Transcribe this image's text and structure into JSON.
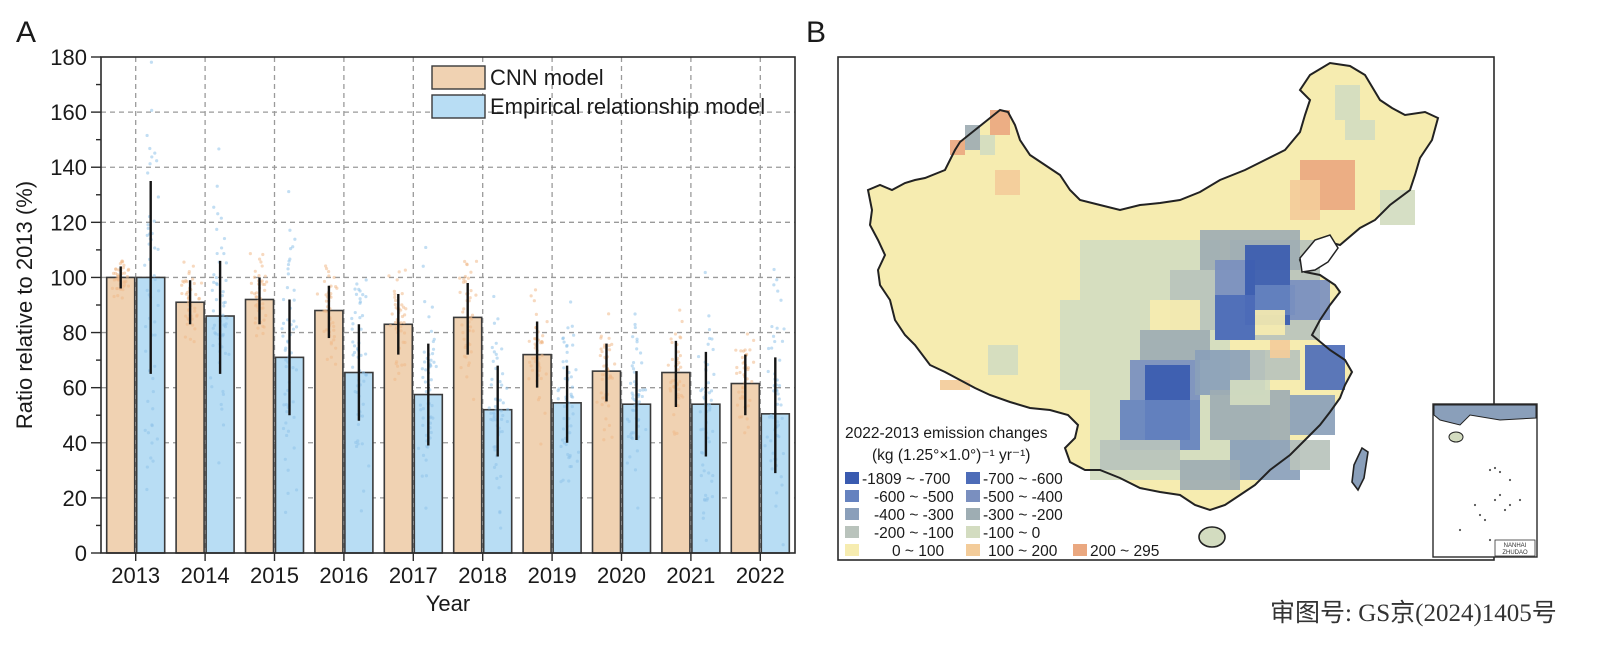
{
  "panels": {
    "a_label": "A",
    "b_label": "B"
  },
  "chart_data": [
    {
      "type": "bar",
      "title": "",
      "xlabel": "Year",
      "ylabel": "Ratio relative to 2013 (%)",
      "ylim": [
        0,
        180
      ],
      "yticks": [
        0,
        20,
        40,
        60,
        80,
        100,
        120,
        140,
        160,
        180
      ],
      "yticks_minor_step": 10,
      "grid": true,
      "legend_position": "top-right",
      "categories": [
        "2013",
        "2014",
        "2015",
        "2016",
        "2017",
        "2018",
        "2019",
        "2020",
        "2021",
        "2022"
      ],
      "series": [
        {
          "name": "CNN model",
          "color": "#f0d2b2",
          "point_color": "#f0b98a",
          "values": [
            100,
            91,
            92,
            88,
            83,
            85.5,
            72,
            66,
            65.5,
            61.5
          ],
          "err_low": [
            96,
            83,
            83,
            78,
            72,
            72,
            60,
            55,
            53,
            50
          ],
          "err_high": [
            104,
            99,
            100,
            97,
            94,
            98,
            84,
            76,
            77,
            72
          ]
        },
        {
          "name": "Empirical relationship model",
          "color": "#b8ddf4",
          "point_color": "#8fc2ea",
          "values": [
            100,
            86,
            71,
            65.5,
            57.5,
            52,
            54.5,
            54,
            54,
            50.5
          ],
          "err_low": [
            65,
            65,
            50,
            48,
            39,
            35,
            40,
            41,
            35,
            29
          ],
          "err_high": [
            135,
            106,
            92,
            83,
            76,
            68,
            68,
            66,
            73,
            71
          ]
        }
      ]
    },
    {
      "type": "heatmap",
      "title": "2022-2013 emission changes",
      "subtitle": "(kg (1.25°×1.0°)⁻¹ yr⁻¹)",
      "legend_position": "bottom-left",
      "legend": [
        {
          "label": "-1809 ~ -700",
          "color": "#3a5bb0"
        },
        {
          "label": "-700 ~ -600",
          "color": "#4d6cb8"
        },
        {
          "label": "-600 ~ -500",
          "color": "#6582bf"
        },
        {
          "label": "-500 ~ -400",
          "color": "#7a8fbf"
        },
        {
          "label": "-400 ~ -300",
          "color": "#8a9fba"
        },
        {
          "label": "-300 ~ -200",
          "color": "#9eadb3"
        },
        {
          "label": "-200 ~ -100",
          "color": "#b9c3bc"
        },
        {
          "label": "-100 ~ 0",
          "color": "#d3dcc0"
        },
        {
          "label": "0 ~ 100",
          "color": "#f6ecb0"
        },
        {
          "label": "100 ~ 200",
          "color": "#f3cc9a"
        },
        {
          "label": "200 ~ 295",
          "color": "#eaa880"
        }
      ],
      "inset_label": [
        "NANHAI",
        "ZHUDAO"
      ]
    }
  ],
  "approval_number": "审图号: GS京(2024)1405号"
}
